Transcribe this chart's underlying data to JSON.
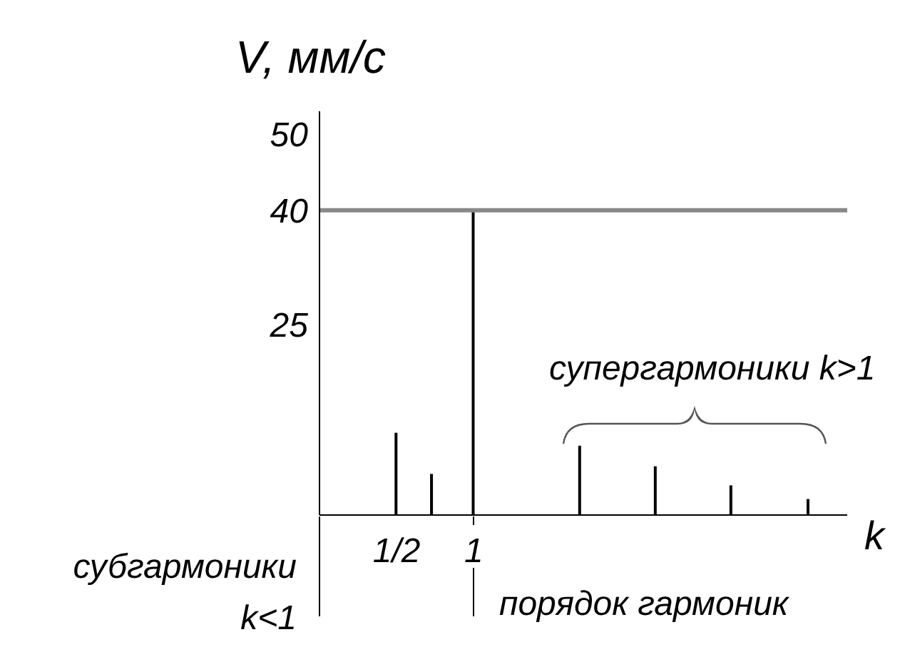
{
  "chart_data": {
    "type": "bar",
    "xlabel": "k",
    "ylabel": "V, мм/с",
    "x": [
      0.5,
      0.73,
      1,
      1.69,
      2.18,
      2.67,
      3.17
    ],
    "values": [
      10.8,
      5.4,
      40,
      9.1,
      6.4,
      3.9,
      2.1
    ],
    "color": "#000000",
    "xlim": [
      0,
      3.42
    ],
    "ylim": [
      0,
      53
    ],
    "xticks": [
      {
        "value": 0.5,
        "label": "1/2"
      },
      1
    ],
    "yticks": [
      25,
      40,
      50
    ],
    "ref_lines": [
      {
        "axis": "y",
        "value": 40,
        "label": null,
        "color": "#888888"
      }
    ],
    "annotations": [
      "субгармоники k<1",
      "супергармоники k>1",
      "порядок гармоник"
    ]
  }
}
